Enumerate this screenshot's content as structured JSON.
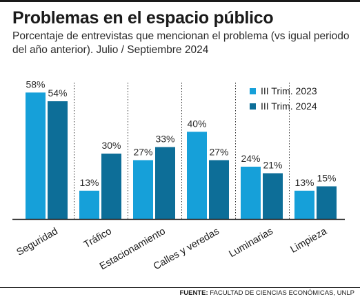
{
  "header": {
    "title": "Problemas en el espacio público",
    "subtitle": "Porcentaje de entrevistas que mencionan el problema (vs igual periodo del año anterior). Julio / Septiembre 2024"
  },
  "colors": {
    "series_2023": "#16a0d9",
    "series_2024": "#0d6e98",
    "separator": "#2a2a2a",
    "baseline": "#222222"
  },
  "chart_data": {
    "type": "bar",
    "categories": [
      "Seguridad",
      "Tráfico",
      "Estacionamiento",
      "Calles y veredas",
      "Luminarias",
      "Limpieza"
    ],
    "series": [
      {
        "name": "III Trim. 2023",
        "values": [
          58,
          13,
          27,
          40,
          24,
          13
        ]
      },
      {
        "name": "III Trim. 2024",
        "values": [
          54,
          30,
          33,
          27,
          21,
          15
        ]
      }
    ],
    "value_suffix": "%",
    "ylim": [
      0,
      60
    ],
    "grid": false,
    "legend_position": "top-right",
    "title": "",
    "xlabel": "",
    "ylabel": ""
  },
  "footer": {
    "source_label": "FUENTE:",
    "source_text": "FACULTAD DE CIENCIAS ECONÓMICAS, UNLP"
  }
}
